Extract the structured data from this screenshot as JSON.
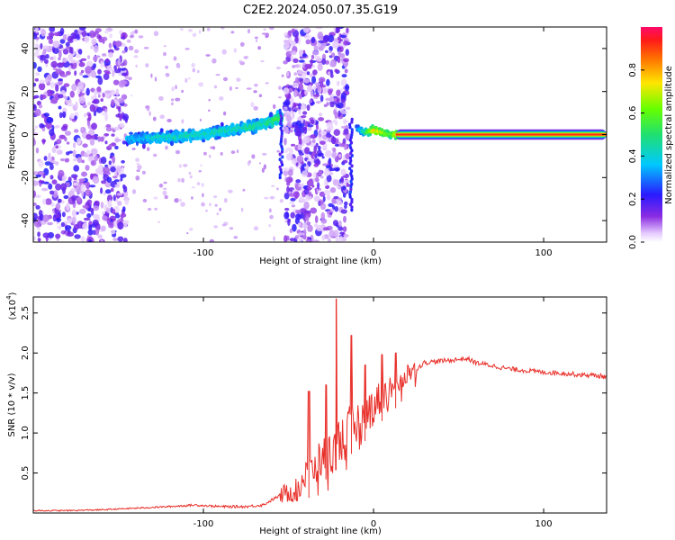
{
  "page_title": "C2E2.2024.050.07.35.G19",
  "chart_data": [
    {
      "type": "heatmap",
      "title": "C2E2.2024.050.07.35.G19",
      "xlabel": "Height of straight line (km)",
      "ylabel": "Frequency (Hz)",
      "xlim": [
        -200,
        137
      ],
      "ylim": [
        -50,
        50
      ],
      "xticks": [
        -100,
        0,
        100
      ],
      "xtick_labels": [
        "-100",
        "0",
        "100"
      ],
      "yticks": [
        -40,
        -20,
        0,
        20,
        40
      ],
      "ytick_labels": [
        "-40",
        "-20",
        "0",
        "20",
        "40"
      ],
      "colorbar": {
        "label": "Normalized spectral amplitude",
        "range": [
          0,
          1
        ],
        "ticks": [
          0.0,
          0.2,
          0.4,
          0.6,
          0.8
        ],
        "tick_labels": [
          "0.0",
          "0.2",
          "0.4",
          "0.6",
          "0.8"
        ],
        "colormap": "rainbow (purple → blue → cyan → green → yellow → red → magenta)"
      },
      "ridge": {
        "x": [
          -145,
          -130,
          -115,
          -100,
          -85,
          -70,
          -60,
          -56,
          -54
        ],
        "frequency_hz": [
          -2,
          -1.5,
          -1,
          0,
          2,
          4,
          6,
          8,
          7
        ],
        "peak_amplitude": [
          0.35,
          0.42,
          0.45,
          0.45,
          0.45,
          0.48,
          0.5,
          0.55,
          0.5
        ]
      },
      "ridge_2": {
        "x": [
          -10,
          -5,
          0,
          5,
          10,
          15,
          20,
          40,
          60,
          80,
          100,
          120,
          137
        ],
        "frequency_hz": [
          3,
          1,
          2,
          1,
          0,
          0,
          0,
          0,
          0,
          0,
          0,
          0,
          0
        ],
        "peak_amplitude": [
          0.3,
          0.5,
          0.8,
          0.7,
          0.6,
          0.85,
          0.9,
          0.9,
          0.9,
          0.9,
          0.9,
          0.9,
          0.9
        ]
      },
      "noise_bands_x": [
        [
          -200,
          -145
        ],
        [
          -52,
          -15
        ]
      ]
    },
    {
      "type": "line",
      "xlabel": "Height of straight line (km)",
      "ylabel": "SNR (10 * v/v)",
      "y_multiplier": "(x10^4)",
      "xlim": [
        -200,
        137
      ],
      "ylim": [
        0,
        2.7
      ],
      "xticks": [
        -100,
        0,
        100
      ],
      "xtick_labels": [
        "-100",
        "0",
        "100"
      ],
      "yticks": [
        0.5,
        1.0,
        1.5,
        2.0,
        2.5
      ],
      "ytick_labels": [
        "0.5",
        "1.0",
        "1.5",
        "2.0",
        "2.5"
      ],
      "color": "#e8302a",
      "series": [
        {
          "x": [
            -200,
            -180,
            -160,
            -140,
            -120,
            -105,
            -90,
            -75,
            -65,
            -55,
            -45,
            -40,
            -35,
            -30,
            -25,
            -20,
            -15,
            -10,
            -5,
            0,
            5,
            10,
            15,
            20,
            25,
            30,
            40,
            50,
            55,
            60,
            70,
            80,
            90,
            100,
            110,
            120,
            130,
            137
          ],
          "values": [
            0.03,
            0.03,
            0.04,
            0.06,
            0.08,
            0.1,
            0.08,
            0.08,
            0.1,
            0.22,
            0.3,
            0.45,
            0.55,
            0.7,
            0.75,
            0.9,
            1.0,
            1.1,
            1.2,
            1.35,
            1.45,
            1.55,
            1.65,
            1.75,
            1.8,
            1.88,
            1.9,
            1.92,
            1.93,
            1.88,
            1.84,
            1.8,
            1.78,
            1.76,
            1.75,
            1.73,
            1.72,
            1.7
          ]
        }
      ],
      "spikes": [
        {
          "x": -38,
          "value": 1.52
        },
        {
          "x": -28,
          "value": 1.6
        },
        {
          "x": -22,
          "value": 2.68
        },
        {
          "x": -13,
          "value": 2.22
        },
        {
          "x": -5,
          "value": 1.85
        },
        {
          "x": 5,
          "value": 1.98
        },
        {
          "x": 13,
          "value": 2.0
        }
      ]
    }
  ]
}
